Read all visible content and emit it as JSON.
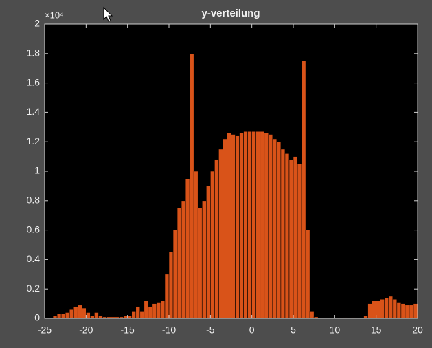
{
  "chart_data": {
    "type": "histogram",
    "title": "y-verteilung",
    "y_exponent_label": "×10⁴",
    "bins": [
      -25,
      -24.5,
      -24,
      -23.5,
      -23,
      -22.5,
      -22,
      -21.5,
      -21,
      -20.5,
      -20,
      -19.5,
      -19,
      -18.5,
      -18,
      -17.5,
      -17,
      -16.5,
      -16,
      -15.5,
      -15,
      -14.5,
      -14,
      -13.5,
      -13,
      -12.5,
      -12,
      -11.5,
      -11,
      -10.5,
      -10,
      -9.5,
      -9,
      -8.5,
      -8,
      -7.5,
      -7,
      -6.5,
      -6,
      -5.5,
      -5,
      -4.5,
      -4,
      -3.5,
      -3,
      -2.5,
      -2,
      -1.5,
      -1,
      -0.5,
      0,
      0.5,
      1,
      1.5,
      2,
      2.5,
      3,
      3.5,
      4,
      4.5,
      5,
      5.5,
      6,
      6.5,
      7,
      7.5,
      8,
      8.5,
      9,
      9.5,
      10,
      10.5,
      11,
      11.5,
      12,
      12.5,
      13,
      13.5,
      14,
      14.5,
      15,
      15.5,
      16,
      16.5,
      17,
      17.5,
      18,
      18.5,
      19,
      19.5,
      20
    ],
    "values": [
      0,
      0,
      0.02,
      0.03,
      0.03,
      0.04,
      0.06,
      0.08,
      0.09,
      0.07,
      0.04,
      0.02,
      0.04,
      0.02,
      0.01,
      0.01,
      0.01,
      0.01,
      0.01,
      0.02,
      0.02,
      0.05,
      0.08,
      0.05,
      0.12,
      0.08,
      0.1,
      0.11,
      0.12,
      0.3,
      0.45,
      0.6,
      0.75,
      0.8,
      0.95,
      1.8,
      1,
      0.75,
      0.8,
      0.9,
      1,
      1.08,
      1.15,
      1.22,
      1.26,
      1.25,
      1.24,
      1.26,
      1.27,
      1.27,
      1.27,
      1.27,
      1.27,
      1.26,
      1.25,
      1.22,
      1.2,
      1.15,
      1.12,
      1.08,
      1.1,
      1.05,
      1.75,
      0.6,
      0.05,
      0.01,
      0,
      0,
      0,
      0,
      0,
      0,
      0.005,
      0,
      0.005,
      0,
      0,
      0.02,
      0.1,
      0.12,
      0.12,
      0.13,
      0.14,
      0.15,
      0.13,
      0.11,
      0.1,
      0.09,
      0.09,
      0.1
    ],
    "color": "#d95319",
    "xlim": [
      -25,
      20
    ],
    "xticks": [
      -25,
      -20,
      -15,
      -10,
      -5,
      0,
      5,
      10,
      15,
      20
    ],
    "ylim": [
      0,
      2
    ],
    "yticks": [
      0,
      0.2,
      0.4,
      0.6,
      0.8,
      1,
      1.2,
      1.4,
      1.6,
      1.8,
      2
    ]
  }
}
